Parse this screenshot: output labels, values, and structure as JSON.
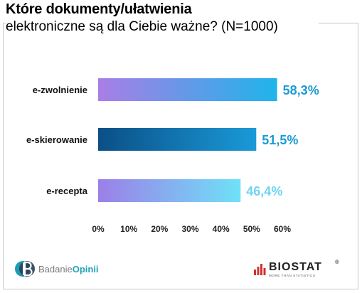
{
  "title": {
    "line1": "Które dokumenty/ułatwienia",
    "line2": "elektroniczne są dla Ciebie ważne? (N=1000)"
  },
  "chart_data": {
    "type": "bar",
    "orientation": "horizontal",
    "categories": [
      "e-zwolnienie",
      "e-skierowanie",
      "e-recepta"
    ],
    "values": [
      58.3,
      51.5,
      46.4
    ],
    "value_labels": [
      "58,3%",
      "51,5%",
      "46,4%"
    ],
    "xlim": [
      0,
      60
    ],
    "x_ticks": [
      "0%",
      "10%",
      "20%",
      "30%",
      "40%",
      "50%",
      "60%"
    ],
    "grid": false,
    "legend": "none",
    "bar_colors": [
      [
        "#a97ee6",
        "#1fb4ea"
      ],
      [
        "#0b4f86",
        "#1a9ad8"
      ],
      [
        "#9b7fe8",
        "#6fe1f8"
      ]
    ],
    "label_colors": [
      "#1d9ad6",
      "#1d9ad6",
      "#6fd4f4"
    ]
  },
  "footer": {
    "left_brand_light": "Badanie",
    "left_brand_bold": "Opinii",
    "right_brand": "BIOSTAT",
    "right_tagline": "MORE THAN STATISTICS",
    "right_reg": "®"
  }
}
